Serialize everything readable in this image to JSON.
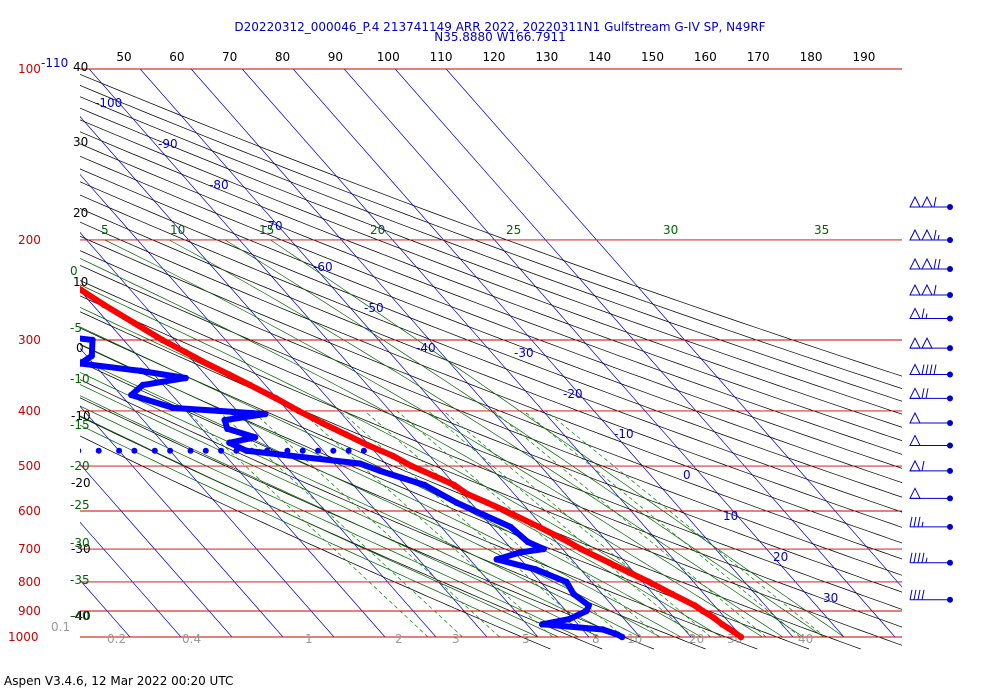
{
  "header": {
    "line1": "D20220312_000046_P.4 213741149 ARR 2022, 20220311N1 Gulfstream G-IV SP, N49RF",
    "line2": "N35.8880 W166.7911"
  },
  "footer": {
    "text": "Aspen V3.4.6, 12 Mar 2022  00:20 UTC"
  },
  "chart_data": {
    "type": "skew-t",
    "pressure_levels": [
      100,
      200,
      300,
      400,
      500,
      600,
      700,
      800,
      900,
      1000
    ],
    "pressure_labels": [
      "100",
      "200",
      "300",
      "400",
      "500",
      "600",
      "700",
      "800",
      "900",
      "1000"
    ],
    "top_label_extra": "-110",
    "top_axis_labels": [
      "50",
      "60",
      "70",
      "80",
      "90",
      "100",
      "110",
      "120",
      "130",
      "140",
      "150",
      "160",
      "170",
      "180",
      "190"
    ],
    "left_height_labels": [
      "40",
      "30",
      "20",
      "10",
      "0",
      "-10",
      "-20",
      "-30",
      "-40"
    ],
    "left_green_labels": [
      "0",
      "-5",
      "-10",
      "-15",
      "-20",
      "-25",
      "-30",
      "-35",
      "-40"
    ],
    "isotherm_labels": [
      "-100",
      "-90",
      "-80",
      "-70",
      "-60",
      "-50",
      "-40",
      "-30",
      "-20",
      "-10",
      "0",
      "10",
      "20",
      "30"
    ],
    "moist_adiabat_labels": [
      "5",
      "10",
      "15",
      "20",
      "25",
      "30",
      "35"
    ],
    "mixing_ratio_labels": [
      "0.1",
      "0.2",
      "0.4",
      "1",
      "2",
      "3",
      "5",
      "8",
      "10",
      "20",
      "30",
      "40"
    ],
    "colors": {
      "isobar": "#cc0000",
      "isotherm": "#0000cc",
      "dry_adiabat": "#000000",
      "moist_adiabat": "#006600",
      "mixing_ratio": "#008800",
      "temperature": "#ff0000",
      "dewpoint": "#0000ff",
      "wind_barb": "#0000cc"
    },
    "series": [
      {
        "role": "temperature",
        "points": [
          [
            190,
            -53.6
          ],
          [
            195,
            -55.0
          ],
          [
            200,
            -55.5
          ],
          [
            210,
            -54.8
          ],
          [
            220,
            -53.4
          ],
          [
            230,
            -51.5
          ],
          [
            245,
            -49.7
          ],
          [
            260,
            -47.8
          ],
          [
            280,
            -45.0
          ],
          [
            300,
            -42.4
          ],
          [
            315,
            -40.0
          ],
          [
            330,
            -37.8
          ],
          [
            345,
            -35.3
          ],
          [
            360,
            -33.0
          ],
          [
            380,
            -30.2
          ],
          [
            400,
            -27.9
          ],
          [
            420,
            -25.4
          ],
          [
            440,
            -22.7
          ],
          [
            460,
            -20.2
          ],
          [
            480,
            -17.2
          ],
          [
            500,
            -15.3
          ],
          [
            520,
            -12.6
          ],
          [
            540,
            -10.2
          ],
          [
            560,
            -9.2
          ],
          [
            580,
            -6.8
          ],
          [
            600,
            -4.6
          ],
          [
            640,
            -0.8
          ],
          [
            680,
            2.4
          ],
          [
            700,
            3.6
          ],
          [
            740,
            6.8
          ],
          [
            770,
            9.0
          ],
          [
            800,
            11.3
          ],
          [
            840,
            13.7
          ],
          [
            880,
            16.2
          ],
          [
            900,
            16.8
          ],
          [
            925,
            17.8
          ],
          [
            950,
            18.3
          ],
          [
            975,
            19.2
          ],
          [
            1000,
            19.8
          ]
        ]
      },
      {
        "role": "dewpoint",
        "points": [
          [
            200,
            -70.0
          ],
          [
            215,
            -70.8
          ],
          [
            230,
            -64.4
          ],
          [
            245,
            -61.5
          ],
          [
            260,
            -61.8
          ],
          [
            280,
            -65.5
          ],
          [
            295,
            -62.0
          ],
          [
            300,
            -56.1
          ],
          [
            320,
            -59.0
          ],
          [
            330,
            -62.5
          ],
          [
            340,
            -52.0
          ],
          [
            350,
            -44.4
          ],
          [
            360,
            -54.0
          ],
          [
            375,
            -58.0
          ],
          [
            395,
            -52.0
          ],
          [
            405,
            -35.0
          ],
          [
            415,
            -44.0
          ],
          [
            430,
            -45.0
          ],
          [
            445,
            -41.0
          ],
          [
            455,
            -47.0
          ],
          [
            470,
            -45.0
          ],
          [
            495,
            -25.0
          ],
          [
            510,
            -22.3
          ],
          [
            540,
            -16.0
          ],
          [
            580,
            -12.8
          ],
          [
            640,
            -6.4
          ],
          [
            680,
            -5.6
          ],
          [
            700,
            -3.7
          ],
          [
            710,
            -9.0
          ],
          [
            730,
            -14.7
          ],
          [
            760,
            -8.8
          ],
          [
            800,
            -4.9
          ],
          [
            840,
            -5.6
          ],
          [
            880,
            -4.6
          ],
          [
            900,
            -6.0
          ],
          [
            930,
            -10.8
          ],
          [
            950,
            -17.0
          ],
          [
            970,
            -6.0
          ],
          [
            990,
            -4.0
          ],
          [
            1000,
            -3.5
          ]
        ]
      }
    ],
    "dewpoint_outlier_points": [
      [
        470,
        -87
      ],
      [
        470,
        -83
      ],
      [
        470,
        -78
      ],
      [
        470,
        -74
      ],
      [
        470,
        -70
      ],
      [
        470,
        -67
      ],
      [
        470,
        -63
      ],
      [
        470,
        -60
      ],
      [
        470,
        -56
      ],
      [
        470,
        -53
      ],
      [
        470,
        -50
      ],
      [
        470,
        -47
      ],
      [
        470,
        -44
      ],
      [
        470,
        -41
      ],
      [
        470,
        -37
      ],
      [
        470,
        -34
      ],
      [
        470,
        -31
      ],
      [
        470,
        -28
      ],
      [
        470,
        -25
      ],
      [
        470,
        -22
      ]
    ],
    "wind_barbs": [
      {
        "pressure": 175,
        "speed_kt": 110
      },
      {
        "pressure": 200,
        "speed_kt": 115
      },
      {
        "pressure": 225,
        "speed_kt": 120
      },
      {
        "pressure": 250,
        "speed_kt": 110
      },
      {
        "pressure": 275,
        "speed_kt": 65
      },
      {
        "pressure": 310,
        "speed_kt": 100
      },
      {
        "pressure": 345,
        "speed_kt": 90
      },
      {
        "pressure": 380,
        "speed_kt": 70
      },
      {
        "pressure": 420,
        "speed_kt": 50
      },
      {
        "pressure": 460,
        "speed_kt": 50
      },
      {
        "pressure": 510,
        "speed_kt": 60
      },
      {
        "pressure": 570,
        "speed_kt": 50
      },
      {
        "pressure": 640,
        "speed_kt": 35
      },
      {
        "pressure": 740,
        "speed_kt": 45
      },
      {
        "pressure": 860,
        "speed_kt": 40
      }
    ]
  }
}
